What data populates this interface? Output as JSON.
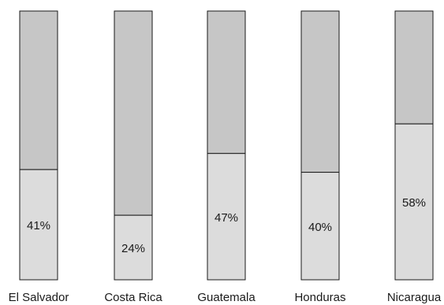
{
  "chart_data": {
    "type": "bar",
    "stacked": true,
    "categories": [
      "El Salvador",
      "Costa Rica",
      "Guatemala",
      "Honduras",
      "Nicaragua"
    ],
    "values": [
      41,
      24,
      47,
      40,
      58
    ],
    "value_labels": [
      "41%",
      "24%",
      "47%",
      "40%",
      "58%"
    ],
    "ylim": [
      0,
      100
    ],
    "grid": false,
    "legend": "none",
    "colors": {
      "value_segment": "#dcdcdc",
      "remainder_segment": "#c6c6c6",
      "outline": "#1a1a1a"
    }
  }
}
